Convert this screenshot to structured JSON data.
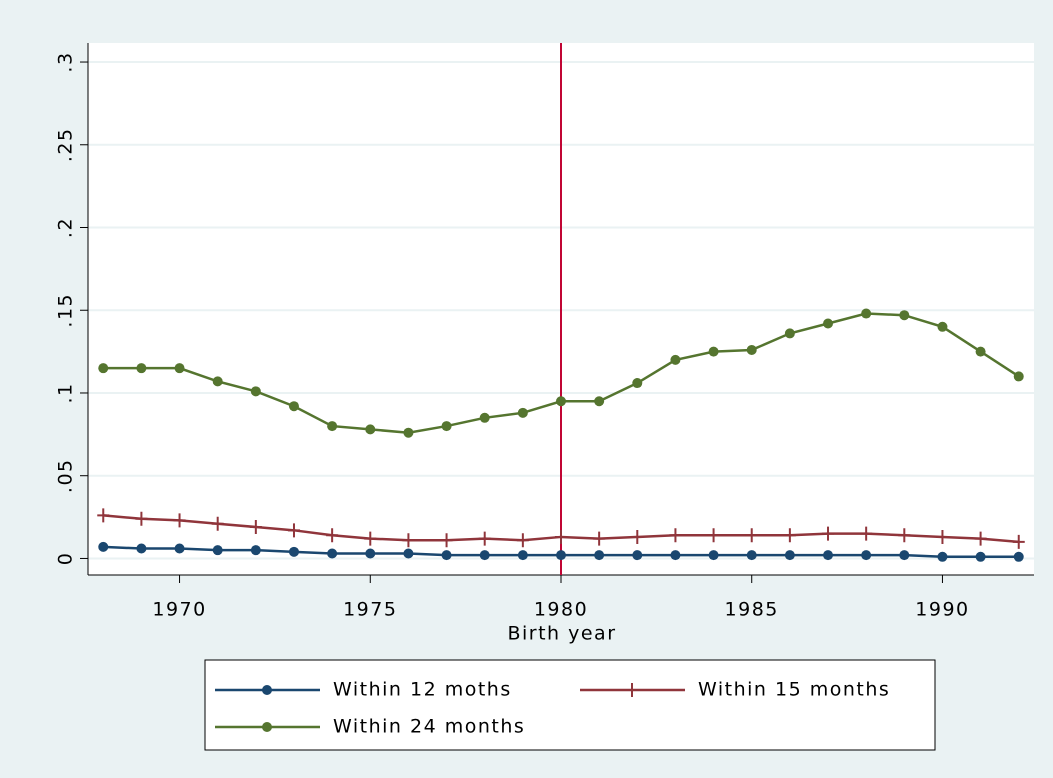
{
  "chart_data": {
    "type": "line",
    "x_label": "Birth year",
    "x": [
      1968,
      1969,
      1970,
      1971,
      1972,
      1973,
      1974,
      1975,
      1976,
      1977,
      1978,
      1979,
      1980,
      1981,
      1982,
      1983,
      1984,
      1985,
      1986,
      1987,
      1988,
      1989,
      1990,
      1991,
      1992
    ],
    "series": [
      {
        "name": "Within 12 moths",
        "color": "#1a476f",
        "marker": "circle",
        "values": [
          0.007,
          0.006,
          0.006,
          0.005,
          0.005,
          0.004,
          0.003,
          0.003,
          0.003,
          0.002,
          0.002,
          0.002,
          0.002,
          0.002,
          0.002,
          0.002,
          0.002,
          0.002,
          0.002,
          0.002,
          0.002,
          0.002,
          0.001,
          0.001,
          0.001
        ]
      },
      {
        "name": "Within 15 months",
        "color": "#90353b",
        "marker": "plus",
        "values": [
          0.026,
          0.024,
          0.023,
          0.021,
          0.019,
          0.017,
          0.014,
          0.012,
          0.011,
          0.011,
          0.012,
          0.011,
          0.013,
          0.012,
          0.013,
          0.014,
          0.014,
          0.014,
          0.014,
          0.015,
          0.015,
          0.014,
          0.013,
          0.012,
          0.01
        ]
      },
      {
        "name": "Within 24 months",
        "color": "#55752f",
        "marker": "circle",
        "values": [
          0.115,
          0.115,
          0.115,
          0.107,
          0.101,
          0.092,
          0.08,
          0.078,
          0.076,
          0.08,
          0.085,
          0.088,
          0.095,
          0.095,
          0.106,
          0.12,
          0.125,
          0.126,
          0.136,
          0.142,
          0.148,
          0.147,
          0.14,
          0.125,
          0.11
        ]
      }
    ],
    "reference_line": {
      "x": 1980,
      "color": "#c10534"
    },
    "xlim": [
      1967.6,
      1992.4
    ],
    "xticks": [
      1970,
      1975,
      1980,
      1985,
      1990
    ],
    "ylim": [
      -0.01,
      0.3115
    ],
    "yticks": [
      0,
      {
        "value": 0.05,
        "label": ".05"
      },
      {
        "value": 0.1,
        "label": ".1"
      },
      {
        "value": 0.15,
        "label": ".15"
      },
      {
        "value": 0.2,
        "label": ".2"
      },
      {
        "value": 0.25,
        "label": ".25"
      },
      {
        "value": 0.3,
        "label": ".3"
      }
    ],
    "grid": true
  }
}
